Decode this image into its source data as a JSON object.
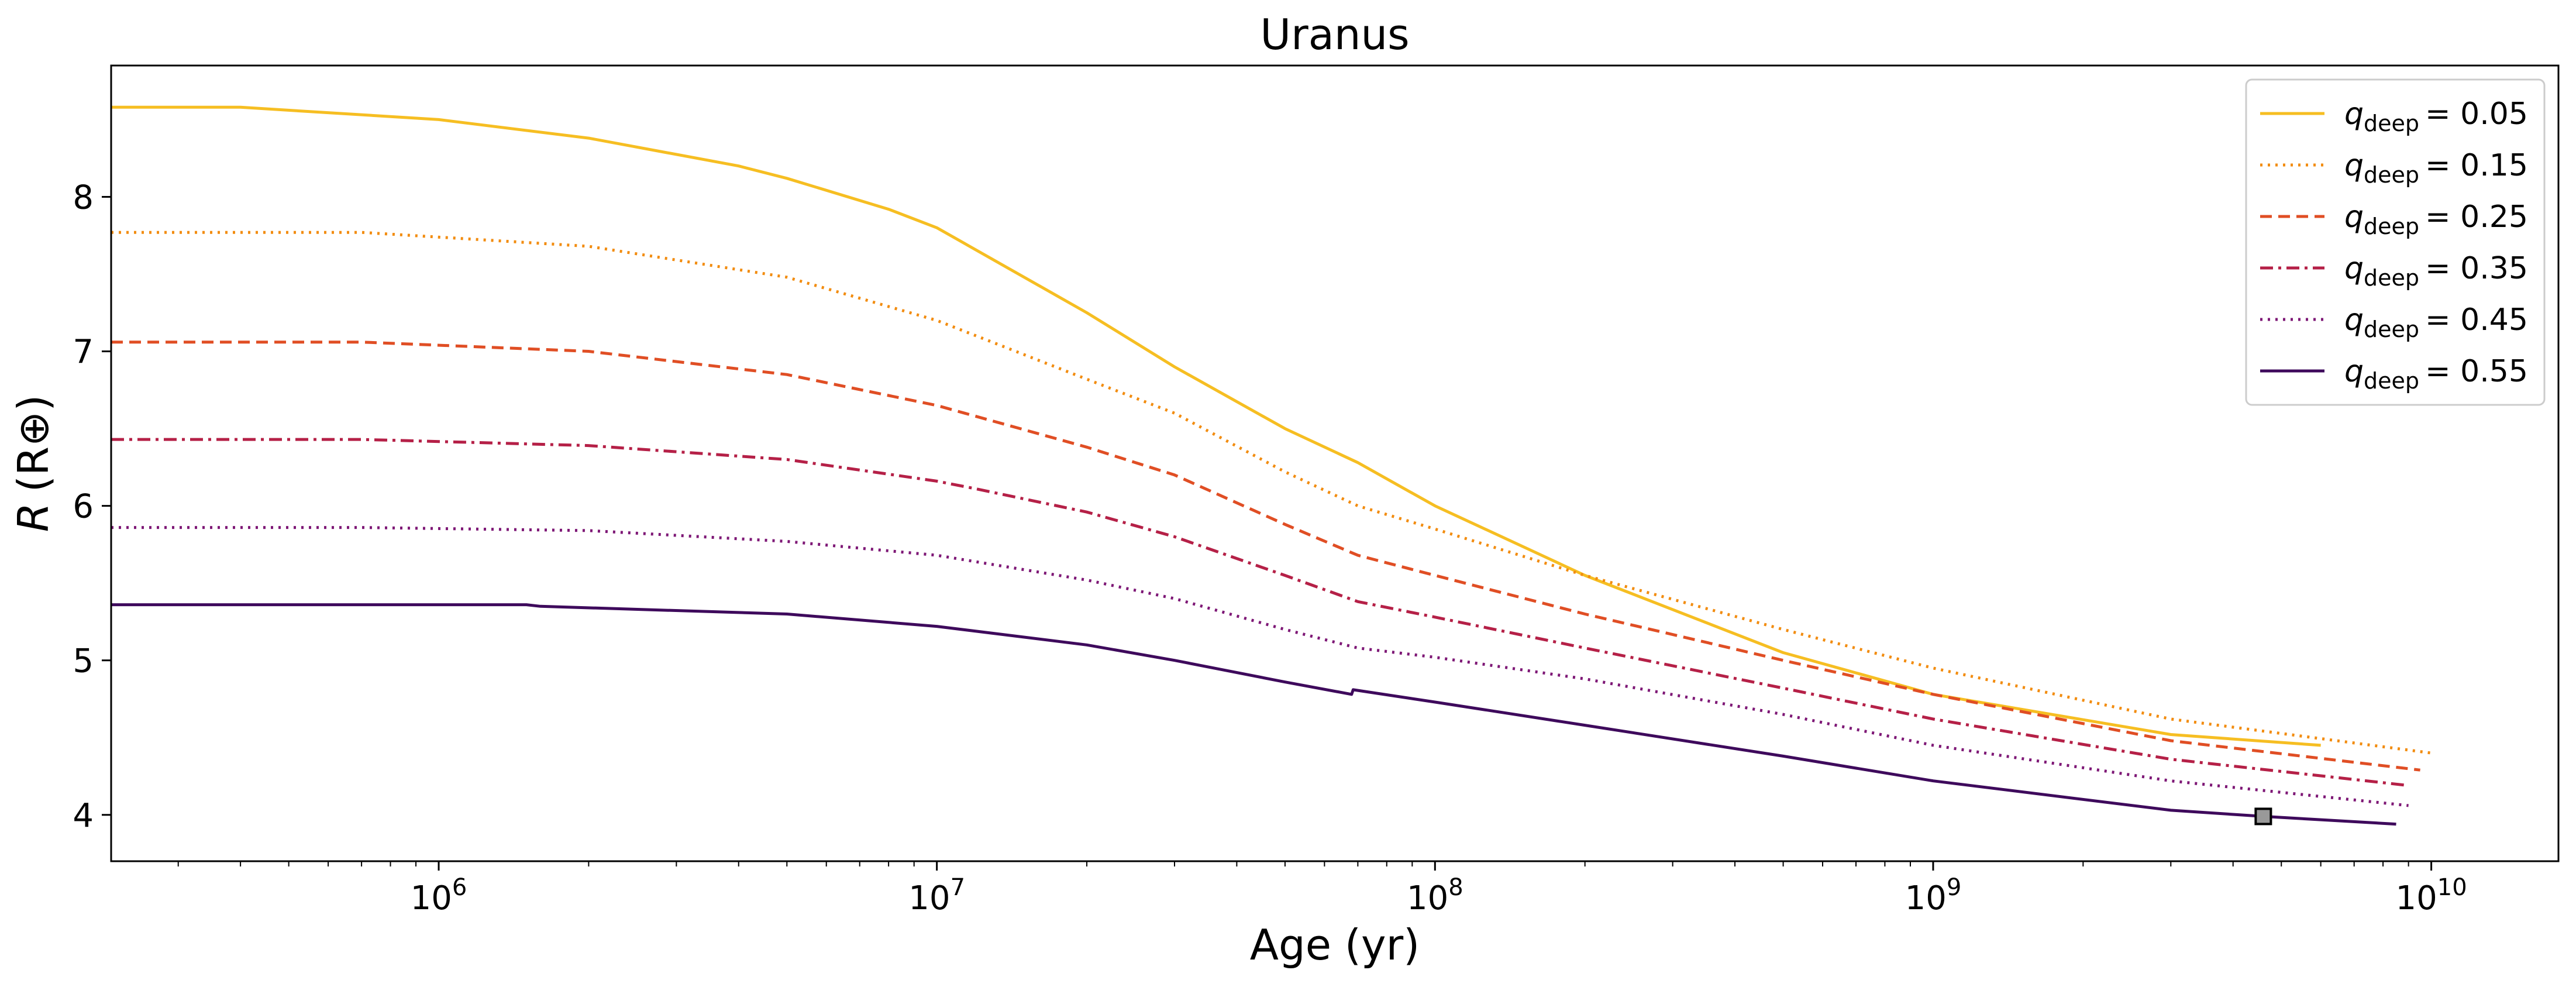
{
  "chart_data": {
    "type": "line",
    "title": "Uranus",
    "xlabel": "Age (yr)",
    "ylabel_main": "R",
    "ylabel_sub": "(R⊕)",
    "xscale": "log",
    "xlim": [
      220000,
      18000000000
    ],
    "ylim": [
      3.7,
      8.85
    ],
    "grid": false,
    "legend_placement": "top-right",
    "x_ticks": [
      {
        "value": 1000000,
        "base": "10",
        "exp": "6"
      },
      {
        "value": 10000000,
        "base": "10",
        "exp": "7"
      },
      {
        "value": 100000000,
        "base": "10",
        "exp": "8"
      },
      {
        "value": 1000000000,
        "base": "10",
        "exp": "9"
      },
      {
        "value": 10000000000,
        "base": "10",
        "exp": "10"
      }
    ],
    "y_ticks": [
      {
        "value": 4,
        "label": "4"
      },
      {
        "value": 5,
        "label": "5"
      },
      {
        "value": 6,
        "label": "6"
      },
      {
        "value": 7,
        "label": "7"
      },
      {
        "value": 8,
        "label": "8"
      }
    ],
    "series": [
      {
        "name": "q_deep = 0.05",
        "var": "q",
        "sub": "deep",
        "eq": "= 0.05",
        "color": "#F6BE22",
        "dash": "solid",
        "x": [
          220000,
          400000,
          1000000,
          2000000,
          4000000,
          5000000,
          8000000,
          10000000,
          20000000,
          30000000,
          50000000,
          70000000,
          100000000,
          200000000,
          500000000,
          1000000000,
          3000000000,
          6000000000
        ],
        "y": [
          8.58,
          8.58,
          8.5,
          8.38,
          8.2,
          8.12,
          7.92,
          7.8,
          7.25,
          6.9,
          6.5,
          6.28,
          6.0,
          5.55,
          5.05,
          4.78,
          4.52,
          4.45
        ]
      },
      {
        "name": "q_deep = 0.15",
        "var": "q",
        "sub": "deep",
        "eq": "= 0.15",
        "color": "#F28C0F",
        "dash": "dotted",
        "x": [
          220000,
          700000,
          2000000,
          5000000,
          10000000,
          20000000,
          30000000,
          50000000,
          70000000,
          100000000,
          200000000,
          500000000,
          1000000000,
          3000000000,
          10000000000
        ],
        "y": [
          7.77,
          7.77,
          7.68,
          7.48,
          7.2,
          6.82,
          6.6,
          6.22,
          6.0,
          5.85,
          5.55,
          5.2,
          4.95,
          4.62,
          4.4
        ]
      },
      {
        "name": "q_deep = 0.25",
        "var": "q",
        "sub": "deep",
        "eq": "= 0.25",
        "color": "#E04E24",
        "dash": "dashed",
        "x": [
          220000,
          700000,
          2000000,
          5000000,
          10000000,
          20000000,
          30000000,
          50000000,
          70000000,
          100000000,
          200000000,
          500000000,
          1000000000,
          3000000000,
          9500000000
        ],
        "y": [
          7.06,
          7.06,
          7.0,
          6.85,
          6.65,
          6.38,
          6.2,
          5.88,
          5.68,
          5.55,
          5.3,
          5.0,
          4.78,
          4.48,
          4.29
        ]
      },
      {
        "name": "q_deep = 0.35",
        "var": "q",
        "sub": "deep",
        "eq": "= 0.35",
        "color": "#B52047",
        "dash": "dashdot",
        "x": [
          220000,
          700000,
          2000000,
          5000000,
          10000000,
          12000000,
          20000000,
          30000000,
          50000000,
          70000000,
          100000000,
          200000000,
          500000000,
          1000000000,
          3000000000,
          9000000000
        ],
        "y": [
          6.43,
          6.43,
          6.39,
          6.3,
          6.16,
          6.11,
          5.96,
          5.8,
          5.55,
          5.38,
          5.28,
          5.08,
          4.82,
          4.62,
          4.36,
          4.19
        ]
      },
      {
        "name": "q_deep = 0.45",
        "var": "q",
        "sub": "deep",
        "eq": "= 0.45",
        "color": "#7E1876",
        "dash": "dotted",
        "x": [
          220000,
          700000,
          2000000,
          5000000,
          10000000,
          20000000,
          30000000,
          50000000,
          70000000,
          100000000,
          200000000,
          500000000,
          1000000000,
          3000000000,
          9000000000
        ],
        "y": [
          5.86,
          5.86,
          5.84,
          5.77,
          5.68,
          5.52,
          5.4,
          5.2,
          5.08,
          5.02,
          4.88,
          4.65,
          4.45,
          4.22,
          4.06
        ]
      },
      {
        "name": "q_deep = 0.55",
        "var": "q",
        "sub": "deep",
        "eq": "= 0.55",
        "color": "#3E0A5C",
        "dash": "solid",
        "x": [
          220000,
          1500000,
          1600000,
          5000000,
          10000000,
          20000000,
          30000000,
          50000000,
          68000000,
          68500000,
          100000000,
          200000000,
          500000000,
          1000000000,
          3000000000,
          4600000000,
          8500000000
        ],
        "y": [
          5.36,
          5.36,
          5.35,
          5.3,
          5.22,
          5.1,
          5.0,
          4.86,
          4.78,
          4.81,
          4.73,
          4.58,
          4.38,
          4.22,
          4.03,
          3.99,
          3.94
        ]
      }
    ],
    "marker": {
      "x": 4600000000,
      "y": 3.99,
      "shape": "square",
      "fill": "#999999",
      "edge": "#000000"
    }
  }
}
